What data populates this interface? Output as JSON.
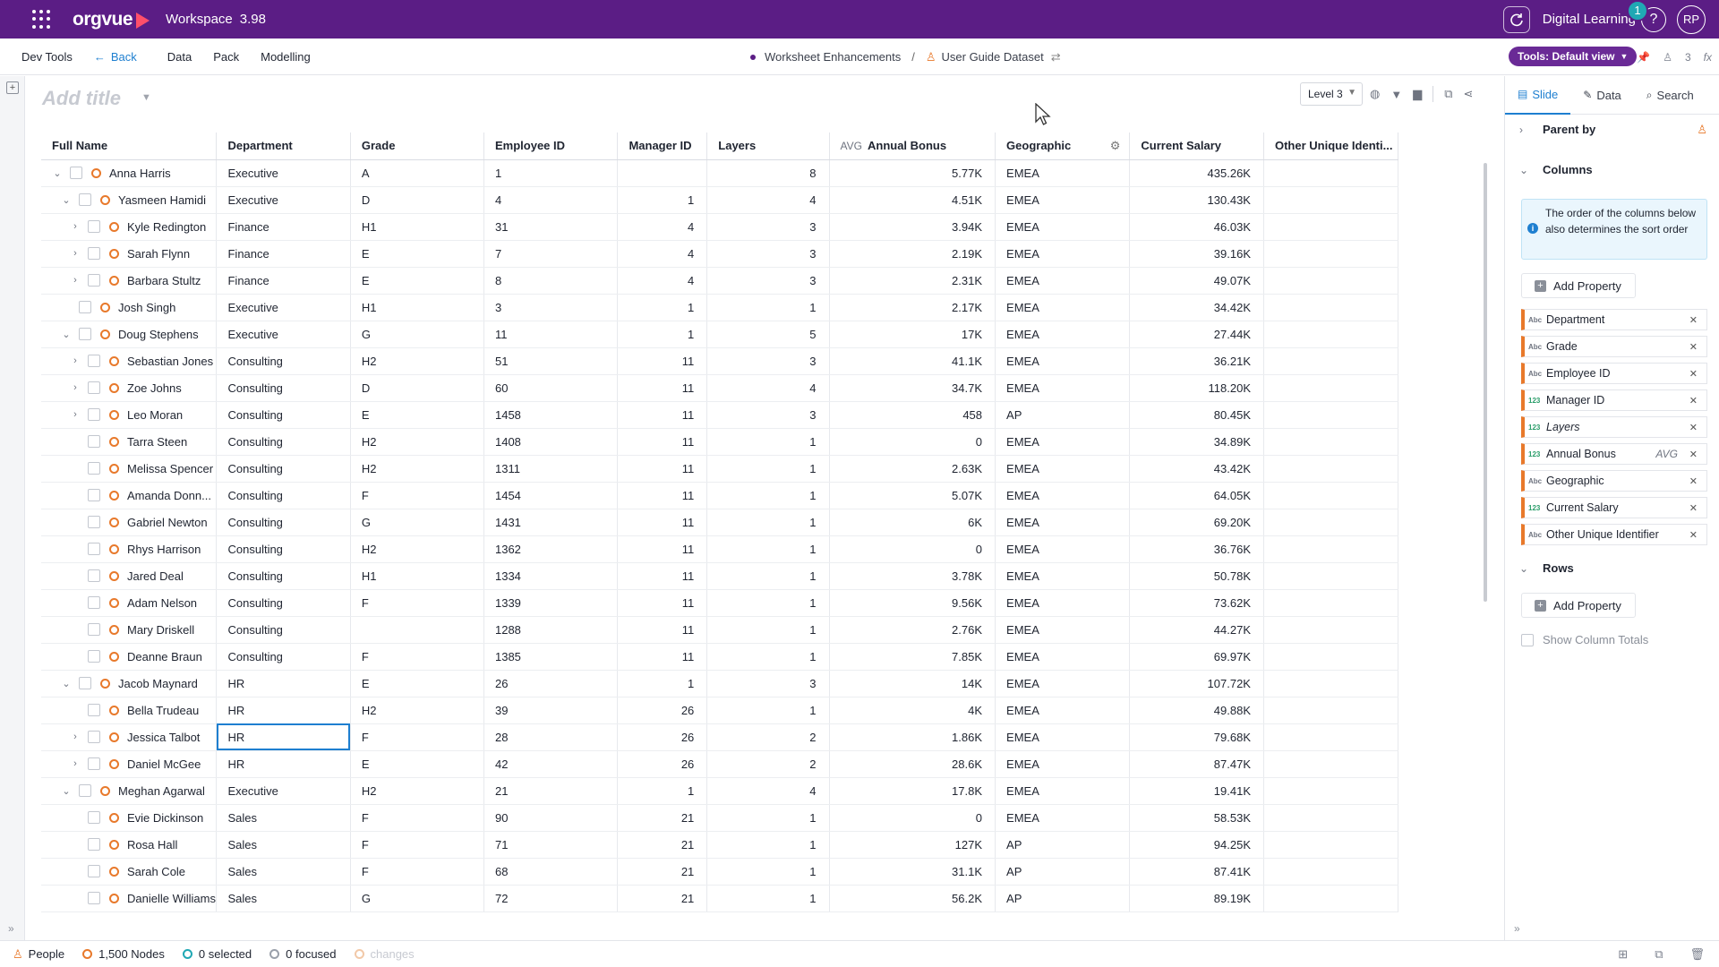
{
  "topbar": {
    "brand": "orgvue",
    "workspace": "Workspace",
    "version": "3.98",
    "user_app": "Digital Learning",
    "notification_count": "1",
    "help": "?",
    "avatar_initials": "RP"
  },
  "subbar": {
    "dev_tools": "Dev Tools",
    "back": "Back",
    "data": "Data",
    "pack": "Pack",
    "modelling": "Modelling",
    "breadcrumb_1": "Worksheet Enhancements",
    "breadcrumb_sep": "/",
    "breadcrumb_2": "User Guide Dataset",
    "tools_view": "Tools: Default view",
    "viewer_count": "3"
  },
  "worksheet": {
    "title_placeholder": "Add title",
    "level": "Level 3"
  },
  "table": {
    "columns": [
      "Full Name",
      "Department",
      "Grade",
      "Employee ID",
      "Manager ID",
      "Layers",
      "Annual Bonus",
      "Geographic",
      "Current Salary",
      "Other Unique Identi..."
    ],
    "annual_bonus_agg": "AVG",
    "rows": [
      {
        "tree": "v",
        "indent": 0,
        "name": "Anna Harris",
        "dept": "Executive",
        "grade": "A",
        "emp": "1",
        "mgr": "",
        "layers": "8",
        "bonus": "5.77K",
        "geo": "EMEA",
        "salary": "435.26K"
      },
      {
        "tree": "v",
        "indent": 1,
        "name": "Yasmeen Hamidi",
        "dept": "Executive",
        "grade": "D",
        "emp": "4",
        "mgr": "1",
        "layers": "4",
        "bonus": "4.51K",
        "geo": "EMEA",
        "salary": "130.43K"
      },
      {
        "tree": ">",
        "indent": 2,
        "name": "Kyle Redington",
        "dept": "Finance",
        "grade": "H1",
        "emp": "31",
        "mgr": "4",
        "layers": "3",
        "bonus": "3.94K",
        "geo": "EMEA",
        "salary": "46.03K"
      },
      {
        "tree": ">",
        "indent": 2,
        "name": "Sarah Flynn",
        "dept": "Finance",
        "grade": "E",
        "emp": "7",
        "mgr": "4",
        "layers": "3",
        "bonus": "2.19K",
        "geo": "EMEA",
        "salary": "39.16K"
      },
      {
        "tree": ">",
        "indent": 2,
        "name": "Barbara Stultz",
        "dept": "Finance",
        "grade": "E",
        "emp": "8",
        "mgr": "4",
        "layers": "3",
        "bonus": "2.31K",
        "geo": "EMEA",
        "salary": "49.07K"
      },
      {
        "tree": "",
        "indent": 1,
        "name": "Josh Singh",
        "dept": "Executive",
        "grade": "H1",
        "emp": "3",
        "mgr": "1",
        "layers": "1",
        "bonus": "2.17K",
        "geo": "EMEA",
        "salary": "34.42K"
      },
      {
        "tree": "v",
        "indent": 1,
        "name": "Doug Stephens",
        "dept": "Executive",
        "grade": "G",
        "emp": "11",
        "mgr": "1",
        "layers": "5",
        "bonus": "17K",
        "geo": "EMEA",
        "salary": "27.44K"
      },
      {
        "tree": ">",
        "indent": 2,
        "name": "Sebastian Jones",
        "dept": "Consulting",
        "grade": "H2",
        "emp": "51",
        "mgr": "11",
        "layers": "3",
        "bonus": "41.1K",
        "geo": "EMEA",
        "salary": "36.21K"
      },
      {
        "tree": ">",
        "indent": 2,
        "name": "Zoe Johns",
        "dept": "Consulting",
        "grade": "D",
        "emp": "60",
        "mgr": "11",
        "layers": "4",
        "bonus": "34.7K",
        "geo": "EMEA",
        "salary": "118.20K"
      },
      {
        "tree": ">",
        "indent": 2,
        "name": "Leo Moran",
        "dept": "Consulting",
        "grade": "E",
        "emp": "1458",
        "mgr": "11",
        "layers": "3",
        "bonus": "458",
        "geo": "AP",
        "salary": "80.45K"
      },
      {
        "tree": "",
        "indent": 2,
        "name": "Tarra Steen",
        "dept": "Consulting",
        "grade": "H2",
        "emp": "1408",
        "mgr": "11",
        "layers": "1",
        "bonus": "0",
        "geo": "EMEA",
        "salary": "34.89K"
      },
      {
        "tree": "",
        "indent": 2,
        "name": "Melissa Spencer",
        "dept": "Consulting",
        "grade": "H2",
        "emp": "1311",
        "mgr": "11",
        "layers": "1",
        "bonus": "2.63K",
        "geo": "EMEA",
        "salary": "43.42K"
      },
      {
        "tree": "",
        "indent": 2,
        "name": "Amanda Donn...",
        "dept": "Consulting",
        "grade": "F",
        "emp": "1454",
        "mgr": "11",
        "layers": "1",
        "bonus": "5.07K",
        "geo": "EMEA",
        "salary": "64.05K"
      },
      {
        "tree": "",
        "indent": 2,
        "name": "Gabriel Newton",
        "dept": "Consulting",
        "grade": "G",
        "emp": "1431",
        "mgr": "11",
        "layers": "1",
        "bonus": "6K",
        "geo": "EMEA",
        "salary": "69.20K"
      },
      {
        "tree": "",
        "indent": 2,
        "name": "Rhys Harrison",
        "dept": "Consulting",
        "grade": "H2",
        "emp": "1362",
        "mgr": "11",
        "layers": "1",
        "bonus": "0",
        "geo": "EMEA",
        "salary": "36.76K"
      },
      {
        "tree": "",
        "indent": 2,
        "name": "Jared Deal",
        "dept": "Consulting",
        "grade": "H1",
        "emp": "1334",
        "mgr": "11",
        "layers": "1",
        "bonus": "3.78K",
        "geo": "EMEA",
        "salary": "50.78K"
      },
      {
        "tree": "",
        "indent": 2,
        "name": "Adam Nelson",
        "dept": "Consulting",
        "grade": "F",
        "emp": "1339",
        "mgr": "11",
        "layers": "1",
        "bonus": "9.56K",
        "geo": "EMEA",
        "salary": "73.62K"
      },
      {
        "tree": "",
        "indent": 2,
        "name": "Mary Driskell",
        "dept": "Consulting",
        "grade": "",
        "emp": "1288",
        "mgr": "11",
        "layers": "1",
        "bonus": "2.76K",
        "geo": "EMEA",
        "salary": "44.27K"
      },
      {
        "tree": "",
        "indent": 2,
        "name": "Deanne Braun",
        "dept": "Consulting",
        "grade": "F",
        "emp": "1385",
        "mgr": "11",
        "layers": "1",
        "bonus": "7.85K",
        "geo": "EMEA",
        "salary": "69.97K"
      },
      {
        "tree": "v",
        "indent": 1,
        "name": "Jacob Maynard",
        "dept": "HR",
        "grade": "E",
        "emp": "26",
        "mgr": "1",
        "layers": "3",
        "bonus": "14K",
        "geo": "EMEA",
        "salary": "107.72K"
      },
      {
        "tree": "",
        "indent": 2,
        "name": "Bella Trudeau",
        "dept": "HR",
        "grade": "H2",
        "emp": "39",
        "mgr": "26",
        "layers": "1",
        "bonus": "4K",
        "geo": "EMEA",
        "salary": "49.88K"
      },
      {
        "tree": ">",
        "indent": 2,
        "name": "Jessica Talbot",
        "dept": "HR",
        "grade": "F",
        "emp": "28",
        "mgr": "26",
        "layers": "2",
        "bonus": "1.86K",
        "geo": "EMEA",
        "salary": "79.68K",
        "selected": true
      },
      {
        "tree": ">",
        "indent": 2,
        "name": "Daniel McGee",
        "dept": "HR",
        "grade": "E",
        "emp": "42",
        "mgr": "26",
        "layers": "2",
        "bonus": "28.6K",
        "geo": "EMEA",
        "salary": "87.47K"
      },
      {
        "tree": "v",
        "indent": 1,
        "name": "Meghan Agarwal",
        "dept": "Executive",
        "grade": "H2",
        "emp": "21",
        "mgr": "1",
        "layers": "4",
        "bonus": "17.8K",
        "geo": "EMEA",
        "salary": "19.41K"
      },
      {
        "tree": "",
        "indent": 2,
        "name": "Evie Dickinson",
        "dept": "Sales",
        "grade": "F",
        "emp": "90",
        "mgr": "21",
        "layers": "1",
        "bonus": "0",
        "geo": "EMEA",
        "salary": "58.53K"
      },
      {
        "tree": "",
        "indent": 2,
        "name": "Rosa Hall",
        "dept": "Sales",
        "grade": "F",
        "emp": "71",
        "mgr": "21",
        "layers": "1",
        "bonus": "127K",
        "geo": "AP",
        "salary": "94.25K"
      },
      {
        "tree": "",
        "indent": 2,
        "name": "Sarah Cole",
        "dept": "Sales",
        "grade": "F",
        "emp": "68",
        "mgr": "21",
        "layers": "1",
        "bonus": "31.1K",
        "geo": "AP",
        "salary": "87.41K"
      },
      {
        "tree": "",
        "indent": 2,
        "name": "Danielle Williams",
        "dept": "Sales",
        "grade": "G",
        "emp": "72",
        "mgr": "21",
        "layers": "1",
        "bonus": "56.2K",
        "geo": "AP",
        "salary": "89.19K"
      }
    ]
  },
  "panel": {
    "tabs": [
      "Slide",
      "Data",
      "Search"
    ],
    "parent_by": "Parent by",
    "columns_heading": "Columns",
    "info_text": "The order of the columns below also determines the sort order",
    "add_property": "Add Property",
    "columns": [
      {
        "type": "Abc",
        "label": "Department",
        "agg": ""
      },
      {
        "type": "Abc",
        "label": "Grade",
        "agg": ""
      },
      {
        "type": "Abc",
        "label": "Employee ID",
        "agg": ""
      },
      {
        "type": "123",
        "label": "Manager ID",
        "agg": ""
      },
      {
        "type": "123",
        "label": "Layers",
        "agg": "",
        "italic": true
      },
      {
        "type": "123",
        "label": "Annual Bonus",
        "agg": "AVG"
      },
      {
        "type": "Abc",
        "label": "Geographic",
        "agg": ""
      },
      {
        "type": "123",
        "label": "Current Salary",
        "agg": ""
      },
      {
        "type": "Abc",
        "label": "Other Unique Identifier",
        "agg": ""
      }
    ],
    "rows_heading": "Rows",
    "show_column_totals": "Show Column Totals"
  },
  "status": {
    "people": "People",
    "nodes": "1,500 Nodes",
    "selected": "0 selected",
    "focused": "0 focused",
    "changes": "changes"
  },
  "colors": {
    "brand_purple": "#5b1d85",
    "accent_orange": "#e8792b",
    "link_blue": "#1e7fd0",
    "teal": "#20a8b4"
  }
}
